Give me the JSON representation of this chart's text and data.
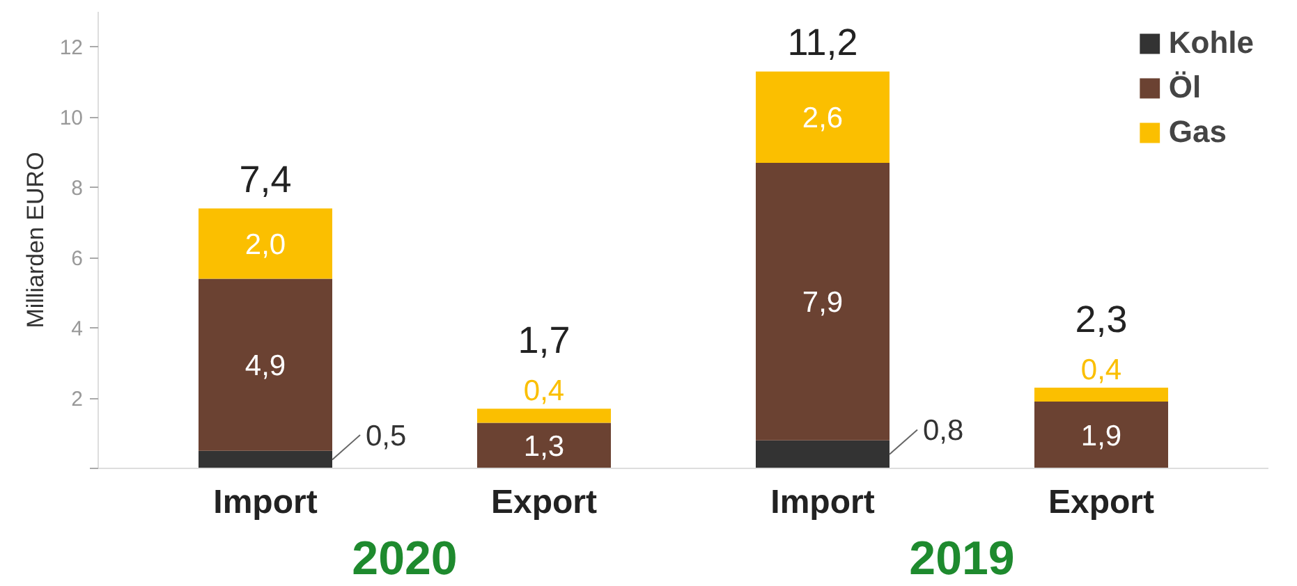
{
  "chart_data": {
    "type": "bar",
    "stacked": true,
    "ylabel": "Milliarden EURO",
    "categories": [
      "Import",
      "Export",
      "Import",
      "Export"
    ],
    "series": [
      {
        "name": "Kohle",
        "color": "#333333",
        "values": [
          0.5,
          null,
          0.8,
          null
        ],
        "value_labels": [
          "0,5",
          null,
          "0,8",
          null
        ]
      },
      {
        "name": "Öl",
        "color": "#6b4232",
        "values": [
          4.9,
          1.3,
          7.9,
          1.9
        ],
        "value_labels": [
          "4,9",
          "1,3",
          "7,9",
          "1,9"
        ]
      },
      {
        "name": "Gas",
        "color": "#fbbf00",
        "values": [
          2.0,
          0.4,
          2.6,
          0.4
        ],
        "value_labels": [
          "2,0",
          "0,4",
          "2,6",
          "0,4"
        ]
      }
    ],
    "totals": [
      "7,4",
      "1,7",
      "11,2",
      "2,3"
    ],
    "annotations": [
      "2020",
      "2019"
    ],
    "ylim": [
      0,
      13
    ],
    "yticks": [
      {
        "value": 0,
        "label": null
      },
      2,
      4,
      6,
      8,
      10,
      12
    ],
    "grid": false,
    "legend": "top right"
  }
}
